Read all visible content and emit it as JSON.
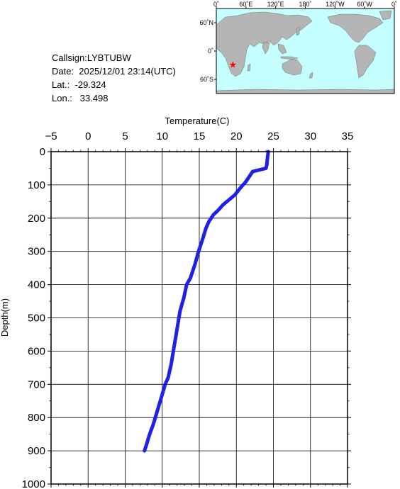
{
  "info": {
    "callsign": "Callsign:LYBTUBW",
    "date": "Date:  2025/12/01 23:14(UTC)",
    "lat": "Lat.:  -29.324",
    "lon": "Lon.:   33.498"
  },
  "map": {
    "lon_labels": [
      "0˚",
      "60˚E",
      "120˚E",
      "180˚",
      "120˚W",
      "60˚W",
      "0˚"
    ],
    "lat_labels": [
      "60˚N",
      "0˚",
      "60˚S"
    ],
    "ocean_color": "#c6ffff",
    "land_color": "#b5b5b5",
    "marker_color": "#ff0000",
    "marker_lat": -29.324,
    "marker_lon": 33.498
  },
  "chart_data": {
    "type": "line",
    "xlabel": "Temperature(C)",
    "ylabel": "Depth(m)",
    "xlim": [
      -5,
      35
    ],
    "ylim": [
      0,
      1000
    ],
    "y_inverted": true,
    "x_axis_position": "top",
    "grid": true,
    "x_ticks": [
      -5,
      0,
      5,
      10,
      15,
      20,
      25,
      30,
      35
    ],
    "y_ticks": [
      0,
      100,
      200,
      300,
      400,
      500,
      600,
      700,
      800,
      900,
      1000
    ],
    "line_color": "#2020e6",
    "series": [
      {
        "x": [
          24.3,
          24.2,
          24.1,
          24.0,
          22.2,
          21.9,
          21.3,
          20.5,
          19.8,
          19.0,
          18.2,
          17.6,
          16.9,
          16.3,
          15.9,
          15.5,
          14.9,
          14.4,
          13.8,
          13.3,
          12.9,
          12.4,
          12.1,
          11.8,
          11.5,
          11.2,
          10.8,
          10.4,
          10.0,
          9.6,
          9.2,
          8.8,
          8.3,
          7.9,
          7.6
        ],
        "y": [
          0,
          20,
          40,
          50,
          60,
          70,
          90,
          110,
          130,
          145,
          160,
          175,
          190,
          210,
          230,
          260,
          300,
          340,
          380,
          400,
          440,
          480,
          520,
          560,
          600,
          640,
          680,
          700,
          730,
          760,
          790,
          820,
          850,
          880,
          900
        ]
      }
    ]
  }
}
